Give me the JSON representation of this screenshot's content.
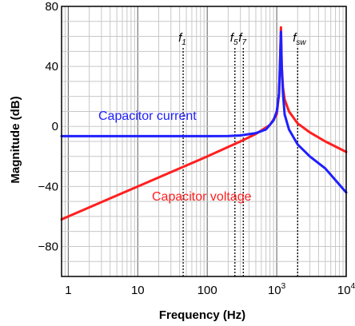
{
  "chart_data": {
    "type": "line",
    "xscale": "log",
    "xlim": [
      0.8,
      10000
    ],
    "ylim": [
      -100,
      80
    ],
    "xlabel": "Frequency (Hz)",
    "ylabel": "Magnitude (dB)",
    "grid": true,
    "x_ticks": [
      {
        "value": 1,
        "label": "1"
      },
      {
        "value": 10,
        "label": "10"
      },
      {
        "value": 100,
        "label": "100"
      },
      {
        "value": 1000,
        "label": "10",
        "sup": "3"
      },
      {
        "value": 10000,
        "label": "10",
        "sup": "4"
      }
    ],
    "y_ticks": [
      {
        "value": 80,
        "label": "80"
      },
      {
        "value": 40,
        "label": "40"
      },
      {
        "value": 0,
        "label": "0"
      },
      {
        "value": -40,
        "label": "−40"
      },
      {
        "value": -80,
        "label": "−80"
      }
    ],
    "series": [
      {
        "name": "Capacitor current",
        "color": "#1f1fff",
        "x": [
          0.8,
          1,
          10,
          100,
          200,
          300,
          500,
          700,
          900,
          1000,
          1080,
          1120,
          1150,
          1180,
          1230,
          1300,
          1500,
          2000,
          3000,
          5000,
          10000
        ],
        "y": [
          -6.5,
          -6.5,
          -6.5,
          -6.5,
          -6.4,
          -6,
          -4.5,
          -2,
          4,
          10,
          22,
          45,
          63,
          40,
          22,
          8,
          -2,
          -12,
          -20,
          -28,
          -44
        ]
      },
      {
        "name": "Capacitor voltage",
        "color": "#ff1f1f",
        "x": [
          0.8,
          1,
          10,
          100,
          300,
          500,
          800,
          1000,
          1080,
          1120,
          1150,
          1180,
          1230,
          1300,
          1500,
          2000,
          3000,
          5000,
          10000
        ],
        "y": [
          -62,
          -60,
          -40,
          -20,
          -10,
          -5,
          1,
          8,
          22,
          45,
          66,
          40,
          26,
          18,
          10,
          2,
          -4,
          -10,
          -17
        ]
      }
    ],
    "markers": [
      {
        "x": 45,
        "label": "f",
        "sub": "1"
      },
      {
        "x": 250,
        "label": "f",
        "sub": "5"
      },
      {
        "x": 330,
        "label": "f",
        "sub": "7"
      },
      {
        "x": 2000,
        "label": "f",
        "sub": "sw"
      }
    ],
    "annotations": [
      {
        "text": "Capacitor current",
        "color": "#1f1fff"
      },
      {
        "text": "Capacitor voltage",
        "color": "#ff1f1f"
      }
    ]
  }
}
